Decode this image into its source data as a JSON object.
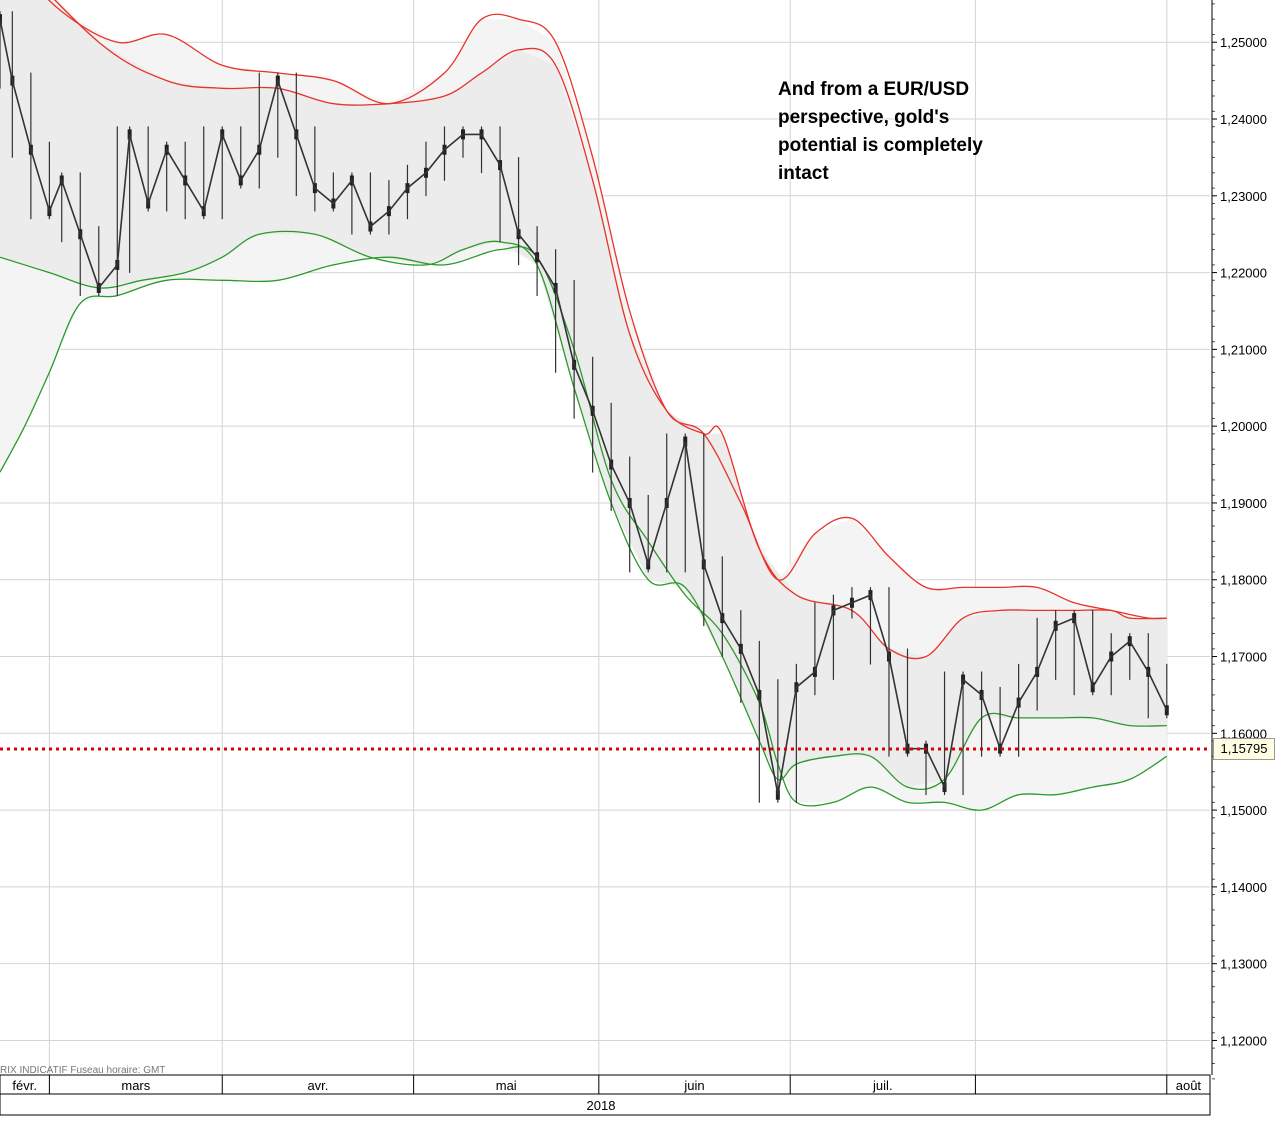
{
  "chart_data": {
    "type": "line",
    "title": "",
    "annotation": "And from a EUR/USD perspective, gold's potential is completely intact",
    "xlabel": "2018",
    "ylabel": "",
    "x_tick_labels": [
      "févr.",
      "mars",
      "avr.",
      "mai",
      "juin",
      "juil.",
      "août"
    ],
    "year_label": "2018",
    "footer_text": "RIX INDICATIF   Fuseau horaire: GMT",
    "y_ticks": [
      1.25,
      1.24,
      1.23,
      1.22,
      1.21,
      1.2,
      1.19,
      1.18,
      1.17,
      1.16,
      1.15,
      1.14,
      1.13,
      1.12
    ],
    "y_tick_labels": [
      "1,25000",
      "1,24000",
      "1,23000",
      "1,22000",
      "1,21000",
      "1,20000",
      "1,19000",
      "1,18000",
      "1,17000",
      "1,16000",
      "1,15000",
      "1,14000",
      "1,13000",
      "1,12000"
    ],
    "ylim": [
      1.1155,
      1.2555
    ],
    "xlim": [
      "2018-01-24",
      "2018-08-08"
    ],
    "grid": true,
    "reference_line": {
      "value": 1.15795,
      "label": "1,15795",
      "color": "#dd0000",
      "style": "dotted"
    },
    "series": [
      {
        "name": "",
        "role": "price",
        "color": "#333333",
        "x": [
          "2018-01-24",
          "2018-01-26",
          "2018-01-29",
          "2018-02-01",
          "2018-02-03",
          "2018-02-06",
          "2018-02-09",
          "2018-02-12",
          "2018-02-14",
          "2018-02-17",
          "2018-02-20",
          "2018-02-23",
          "2018-02-26",
          "2018-03-01",
          "2018-03-04",
          "2018-03-07",
          "2018-03-10",
          "2018-03-13",
          "2018-03-16",
          "2018-03-19",
          "2018-03-22",
          "2018-03-25",
          "2018-03-28",
          "2018-03-31",
          "2018-04-03",
          "2018-04-06",
          "2018-04-09",
          "2018-04-12",
          "2018-04-15",
          "2018-04-18",
          "2018-04-21",
          "2018-04-24",
          "2018-04-27",
          "2018-04-30",
          "2018-05-03",
          "2018-05-06",
          "2018-05-09",
          "2018-05-12",
          "2018-05-15",
          "2018-05-18",
          "2018-05-21",
          "2018-05-24",
          "2018-05-27",
          "2018-05-30",
          "2018-06-02",
          "2018-06-05",
          "2018-06-08",
          "2018-06-11",
          "2018-06-14",
          "2018-06-17",
          "2018-06-20",
          "2018-06-23",
          "2018-06-26",
          "2018-06-29",
          "2018-07-02",
          "2018-07-05",
          "2018-07-08",
          "2018-07-11",
          "2018-07-14",
          "2018-07-17",
          "2018-07-20",
          "2018-07-23",
          "2018-07-26",
          "2018-07-29",
          "2018-08-01"
        ],
        "y": [
          1.253,
          1.245,
          1.236,
          1.228,
          1.232,
          1.225,
          1.218,
          1.221,
          1.238,
          1.229,
          1.236,
          1.232,
          1.228,
          1.238,
          1.232,
          1.236,
          1.245,
          1.238,
          1.231,
          1.229,
          1.232,
          1.226,
          1.228,
          1.231,
          1.233,
          1.236,
          1.238,
          1.238,
          1.234,
          1.225,
          1.222,
          1.218,
          1.208,
          1.202,
          1.195,
          1.19,
          1.182,
          1.19,
          1.198,
          1.182,
          1.175,
          1.171,
          1.165,
          1.152,
          1.166,
          1.168,
          1.176,
          1.177,
          1.178,
          1.17,
          1.158,
          1.158,
          1.153,
          1.167,
          1.165,
          1.158,
          1.164,
          1.168,
          1.174,
          1.175,
          1.166,
          1.17,
          1.172,
          1.168,
          1.163
        ]
      },
      {
        "name": "",
        "role": "outer-upper-band",
        "color": "#e8332b",
        "x": [
          "2018-01-24",
          "2018-02-03",
          "2018-02-12",
          "2018-02-20",
          "2018-03-01",
          "2018-03-10",
          "2018-03-19",
          "2018-03-28",
          "2018-04-06",
          "2018-04-12",
          "2018-04-18",
          "2018-04-24",
          "2018-04-30",
          "2018-05-06",
          "2018-05-12",
          "2018-05-18",
          "2018-05-24",
          "2018-05-30",
          "2018-06-05",
          "2018-06-11",
          "2018-06-17",
          "2018-06-23",
          "2018-06-29",
          "2018-07-05",
          "2018-07-11",
          "2018-07-17",
          "2018-07-23",
          "2018-07-29",
          "2018-08-01"
        ],
        "y": [
          1.262,
          1.254,
          1.25,
          1.251,
          1.247,
          1.246,
          1.245,
          1.242,
          1.246,
          1.253,
          1.253,
          1.25,
          1.235,
          1.215,
          1.202,
          1.199,
          1.19,
          1.18,
          1.186,
          1.188,
          1.183,
          1.179,
          1.179,
          1.179,
          1.179,
          1.177,
          1.176,
          1.175,
          1.175
        ]
      },
      {
        "name": "",
        "role": "inner-upper-band",
        "color": "#e8332b",
        "x": [
          "2018-01-24",
          "2018-02-09",
          "2018-02-20",
          "2018-03-01",
          "2018-03-10",
          "2018-03-19",
          "2018-03-28",
          "2018-04-06",
          "2018-04-12",
          "2018-04-18",
          "2018-04-24",
          "2018-04-30",
          "2018-05-06",
          "2018-05-12",
          "2018-05-18",
          "2018-05-21",
          "2018-05-27",
          "2018-06-02",
          "2018-06-11",
          "2018-06-17",
          "2018-06-23",
          "2018-06-29",
          "2018-07-05",
          "2018-07-11",
          "2018-07-17",
          "2018-07-23",
          "2018-07-26",
          "2018-08-01"
        ],
        "y": [
          1.263,
          1.25,
          1.245,
          1.244,
          1.244,
          1.242,
          1.242,
          1.243,
          1.246,
          1.249,
          1.247,
          1.232,
          1.212,
          1.202,
          1.199,
          1.199,
          1.184,
          1.178,
          1.176,
          1.171,
          1.17,
          1.175,
          1.176,
          1.176,
          1.176,
          1.176,
          1.175,
          1.175
        ]
      },
      {
        "name": "",
        "role": "outer-lower-band",
        "color": "#2b9a2b",
        "x": [
          "2018-01-24",
          "2018-01-28",
          "2018-02-01",
          "2018-02-06",
          "2018-02-12",
          "2018-02-20",
          "2018-03-01",
          "2018-03-10",
          "2018-03-19",
          "2018-03-28",
          "2018-04-06",
          "2018-04-15",
          "2018-04-21",
          "2018-04-27",
          "2018-05-03",
          "2018-05-09",
          "2018-05-15",
          "2018-05-21",
          "2018-05-27",
          "2018-05-30",
          "2018-06-02",
          "2018-06-08",
          "2018-06-14",
          "2018-06-20",
          "2018-06-26",
          "2018-07-02",
          "2018-07-08",
          "2018-07-14",
          "2018-07-20",
          "2018-07-26",
          "2018-08-01"
        ],
        "y": [
          1.194,
          1.2,
          1.207,
          1.216,
          1.217,
          1.219,
          1.219,
          1.219,
          1.221,
          1.222,
          1.221,
          1.223,
          1.222,
          1.21,
          1.193,
          1.185,
          1.178,
          1.173,
          1.164,
          1.156,
          1.151,
          1.151,
          1.153,
          1.151,
          1.151,
          1.15,
          1.152,
          1.152,
          1.153,
          1.154,
          1.157
        ]
      },
      {
        "name": "",
        "role": "inner-lower-band",
        "color": "#2b9a2b",
        "x": [
          "2018-01-24",
          "2018-02-01",
          "2018-02-09",
          "2018-02-16",
          "2018-02-23",
          "2018-03-01",
          "2018-03-07",
          "2018-03-16",
          "2018-03-25",
          "2018-04-03",
          "2018-04-09",
          "2018-04-15",
          "2018-04-21",
          "2018-04-27",
          "2018-05-03",
          "2018-05-09",
          "2018-05-15",
          "2018-05-21",
          "2018-05-27",
          "2018-05-30",
          "2018-06-02",
          "2018-06-08",
          "2018-06-14",
          "2018-06-20",
          "2018-06-26",
          "2018-07-02",
          "2018-07-08",
          "2018-07-14",
          "2018-07-20",
          "2018-07-26",
          "2018-08-01"
        ],
        "y": [
          1.222,
          1.22,
          1.218,
          1.219,
          1.22,
          1.222,
          1.225,
          1.225,
          1.222,
          1.221,
          1.223,
          1.224,
          1.221,
          1.205,
          1.19,
          1.18,
          1.179,
          1.17,
          1.159,
          1.154,
          1.156,
          1.157,
          1.157,
          1.153,
          1.154,
          1.162,
          1.162,
          1.162,
          1.162,
          1.161,
          1.161
        ]
      }
    ]
  }
}
